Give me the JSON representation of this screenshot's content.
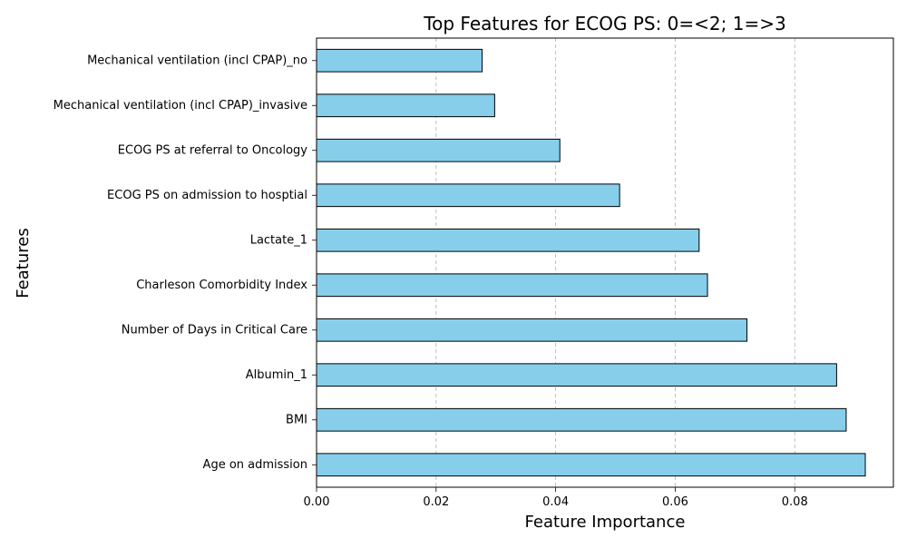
{
  "chart_data": {
    "type": "bar",
    "orientation": "horizontal",
    "title": "Top Features for ECOG PS: 0=<2; 1=>3",
    "xlabel": "Feature Importance",
    "ylabel": "Features",
    "xlim": [
      0,
      0.0965
    ],
    "xticks": [
      0.0,
      0.02,
      0.04,
      0.06,
      0.08
    ],
    "xtick_labels": [
      "0.00",
      "0.02",
      "0.04",
      "0.06",
      "0.08"
    ],
    "grid": "x-axis dashed",
    "bar_color": "#87CEEB",
    "bar_edge_color": "#000000",
    "categories": [
      "Mechanical ventilation (incl CPAP)_no",
      "Mechanical ventilation (incl CPAP)_invasive",
      "ECOG PS at referral to Oncology",
      "ECOG PS on admission to hosptial",
      "Lactate_1",
      "Charleson Comorbidity Index",
      "Number of Days in Critical Care",
      "Albumin_1",
      "BMI",
      "Age on admission"
    ],
    "values": [
      0.0277,
      0.0298,
      0.0407,
      0.0507,
      0.064,
      0.0654,
      0.072,
      0.087,
      0.0886,
      0.0918
    ]
  }
}
